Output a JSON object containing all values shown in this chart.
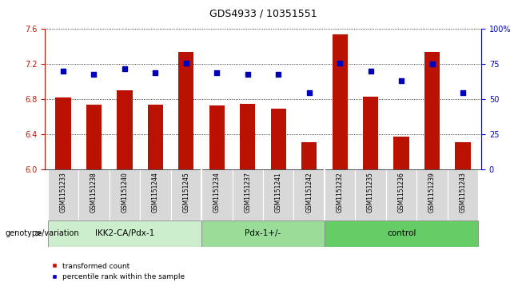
{
  "title": "GDS4933 / 10351551",
  "samples": [
    "GSM1151233",
    "GSM1151238",
    "GSM1151240",
    "GSM1151244",
    "GSM1151245",
    "GSM1151234",
    "GSM1151237",
    "GSM1151241",
    "GSM1151242",
    "GSM1151232",
    "GSM1151235",
    "GSM1151236",
    "GSM1151239",
    "GSM1151243"
  ],
  "bar_values": [
    6.82,
    6.74,
    6.9,
    6.74,
    7.34,
    6.73,
    6.75,
    6.69,
    6.31,
    7.54,
    6.83,
    6.38,
    7.34,
    6.31
  ],
  "percentile_values": [
    70,
    68,
    72,
    69,
    76,
    69,
    68,
    68,
    55,
    76,
    70,
    63,
    75,
    55
  ],
  "groups": [
    {
      "label": "IKK2-CA/Pdx-1",
      "start": 0,
      "end": 5,
      "color": "#cceecc"
    },
    {
      "label": "Pdx-1+/-",
      "start": 5,
      "end": 9,
      "color": "#99dd99"
    },
    {
      "label": "control",
      "start": 9,
      "end": 14,
      "color": "#66cc66"
    }
  ],
  "ylim_left": [
    6.0,
    7.6
  ],
  "yticks_left": [
    6.0,
    6.4,
    6.8,
    7.2,
    7.6
  ],
  "ylim_right": [
    0,
    100
  ],
  "yticks_right": [
    0,
    25,
    50,
    75,
    100
  ],
  "bar_color": "#bb1100",
  "dot_color": "#0000bb",
  "bar_width": 0.5,
  "bar_bottom": 6.0,
  "legend_red": "transformed count",
  "legend_blue": "percentile rank within the sample",
  "genotype_label": "genotype/variation",
  "tick_color_left": "#cc1100",
  "tick_color_right": "#0000cc"
}
